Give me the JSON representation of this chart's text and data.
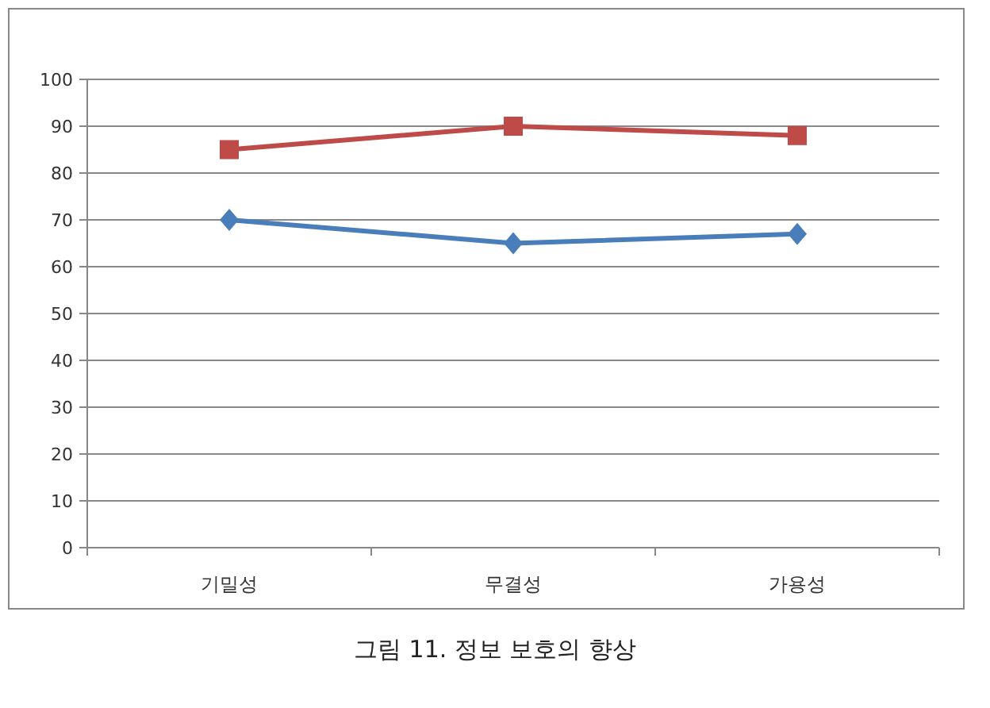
{
  "chart_data": {
    "type": "line",
    "annotations": [
      "그림 11. 정보 보호의 향상"
    ],
    "categories": [
      "기밀성",
      "무결성",
      "가용성"
    ],
    "series": [
      {
        "color": "#4a7ebb",
        "marker": "diamond",
        "values": [
          70,
          65,
          67
        ]
      },
      {
        "color": "#be4b48",
        "marker": "square",
        "values": [
          85,
          90,
          88
        ]
      }
    ],
    "ylim": [
      0,
      100
    ],
    "yticks": [
      0,
      10,
      20,
      30,
      40,
      50,
      60,
      70,
      80,
      90,
      100
    ],
    "grid": "y"
  }
}
